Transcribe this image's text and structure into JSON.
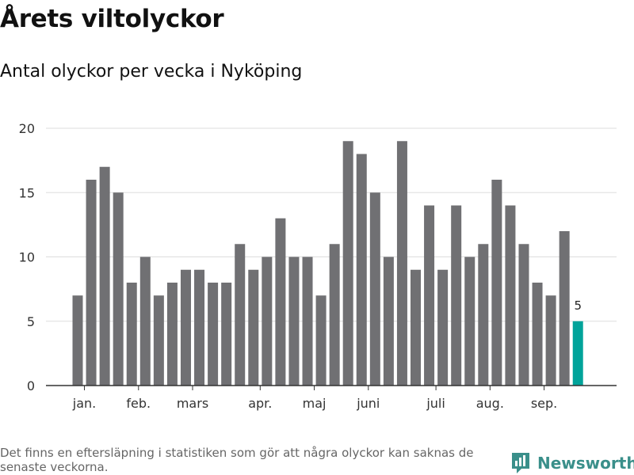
{
  "title": "Årets viltolyckor",
  "subtitle": "Antal olyckor per vecka i Nyköping",
  "footnote": "Det finns en eftersläpning i statistiken som gör att några olyckor kan saknas de senaste veckorna.",
  "brand": {
    "name": "Newsworthy",
    "color": "#3a8f8a"
  },
  "colors": {
    "bar": "#707073",
    "highlight": "#00a39a",
    "grid": "#dddddd",
    "axis": "#333333"
  },
  "chart_data": {
    "type": "bar",
    "title": "",
    "xlabel": "",
    "ylabel": "",
    "ylim": [
      0,
      20
    ],
    "yticks": [
      0,
      5,
      10,
      15,
      20
    ],
    "grid": true,
    "legend": "none",
    "x": [
      1,
      2,
      3,
      4,
      5,
      6,
      7,
      8,
      9,
      10,
      11,
      12,
      13,
      14,
      15,
      16,
      17,
      18,
      19,
      20,
      21,
      22,
      23,
      24,
      25,
      26,
      27,
      28,
      29,
      30,
      31,
      32,
      33,
      34,
      35,
      36,
      37,
      38
    ],
    "values": [
      7,
      16,
      17,
      15,
      8,
      10,
      7,
      8,
      9,
      9,
      8,
      8,
      11,
      9,
      10,
      13,
      10,
      10,
      7,
      11,
      19,
      18,
      15,
      10,
      19,
      9,
      14,
      9,
      14,
      10,
      11,
      16,
      14,
      11,
      8,
      7,
      12,
      5
    ],
    "highlight_last": true,
    "highlight_label": "5",
    "month_ticks": [
      {
        "label": "jan.",
        "x": 1.5
      },
      {
        "label": "feb.",
        "x": 5.5
      },
      {
        "label": "mars",
        "x": 9.5
      },
      {
        "label": "apr.",
        "x": 14.5
      },
      {
        "label": "maj",
        "x": 18.5
      },
      {
        "label": "juni",
        "x": 22.5
      },
      {
        "label": "juli",
        "x": 27.5
      },
      {
        "label": "aug.",
        "x": 31.5
      },
      {
        "label": "sep.",
        "x": 35.5
      }
    ]
  }
}
